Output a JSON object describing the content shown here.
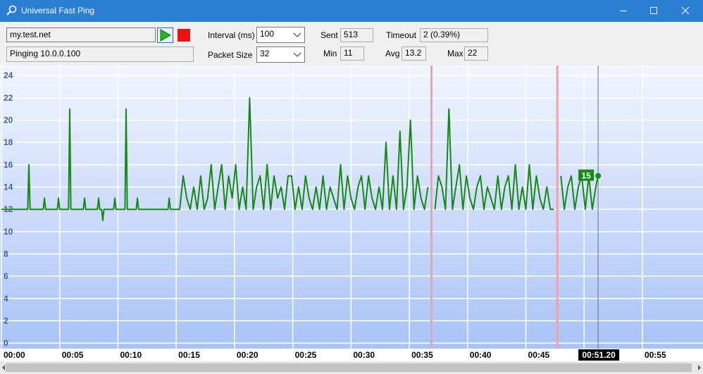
{
  "window": {
    "title": "Universal Fast Ping"
  },
  "controls": {
    "host": "my.test.net",
    "status": "Pinging 10.0.0.100",
    "interval_label": "Interval (ms)",
    "interval_value": "100",
    "packet_label": "Packet Size",
    "packet_value": "32",
    "sent_label": "Sent",
    "sent_value": "513",
    "timeout_label": "Timeout",
    "timeout_value": "2 (0.39%)",
    "min_label": "Min",
    "min_value": "11",
    "avg_label": "Avg",
    "avg_value": "13.2",
    "max_label": "Max",
    "max_value": "22"
  },
  "chart_data": {
    "type": "line",
    "xlim": [
      0,
      60.2
    ],
    "ylim": [
      -0.5,
      24.9
    ],
    "yticks": [
      0,
      2,
      4,
      6,
      8,
      10,
      12,
      14,
      16,
      18,
      20,
      22,
      24
    ],
    "xticks": [
      {
        "value": 0,
        "label": "00:00"
      },
      {
        "value": 5,
        "label": "00:05"
      },
      {
        "value": 10,
        "label": "00:10"
      },
      {
        "value": 15,
        "label": "00:15"
      },
      {
        "value": 20,
        "label": "00:20"
      },
      {
        "value": 25,
        "label": "00:25"
      },
      {
        "value": 30,
        "label": "00:30"
      },
      {
        "value": 35,
        "label": "00:35"
      },
      {
        "value": 40,
        "label": "00:40"
      },
      {
        "value": 45,
        "label": "00:45"
      },
      {
        "value": 50,
        "label": null
      },
      {
        "value": 55,
        "label": "00:55"
      }
    ],
    "grid": true,
    "cursor": {
      "value": 51.2,
      "label": "00:51.20"
    },
    "timeouts": [
      36.9,
      47.7
    ],
    "series": [
      {
        "color": "#158a15",
        "x": [
          0,
          2.26,
          2.36,
          2.46,
          3.59,
          3.69,
          3.79,
          4.8,
          4.9,
          5.0,
          5.76,
          5.86,
          5.96,
          7.03,
          7.13,
          7.23,
          8.24,
          8.34,
          8.44,
          8.6,
          8.7,
          8.8,
          9.63,
          9.73,
          9.83,
          10.6,
          10.7,
          10.8,
          11.57,
          11.67,
          11.77,
          14.3,
          14.4,
          14.5,
          15.0,
          15.3,
          15.6,
          15.9,
          16.2,
          16.5,
          16.8,
          17.1,
          17.4,
          17.7,
          18.0,
          18.3,
          18.6,
          18.9,
          19.2,
          19.5,
          19.8,
          20.1,
          20.4,
          20.7,
          21.0,
          21.3,
          21.6,
          21.9,
          22.2,
          22.5,
          22.8,
          23.1,
          23.4,
          23.7,
          24.0,
          24.3,
          24.6,
          24.9,
          25.2,
          25.5,
          25.8,
          26.1,
          26.4,
          26.7,
          27.0,
          27.3,
          27.6,
          27.9,
          28.2,
          28.5,
          28.8,
          29.1,
          29.4,
          29.7,
          30.0,
          30.3,
          30.6,
          30.9,
          31.2,
          31.5,
          31.8,
          32.1,
          32.4,
          32.7,
          33.0,
          33.3,
          33.6,
          33.9,
          34.2,
          34.5,
          34.8,
          35.1,
          35.4,
          35.7,
          36.0,
          36.3,
          36.6,
          36.9,
          37.2,
          37.5,
          37.8,
          38.1,
          38.4,
          38.7,
          39.0,
          39.3,
          39.6,
          39.9,
          40.2,
          40.5,
          40.8,
          41.1,
          41.4,
          41.7,
          42.0,
          42.3,
          42.6,
          42.9,
          43.2,
          43.5,
          43.8,
          44.1,
          44.4,
          44.7,
          45.0,
          45.3,
          45.6,
          45.9,
          46.2,
          46.5,
          46.8,
          47.1,
          47.4,
          47.7,
          48.0,
          48.3,
          48.6,
          48.9,
          49.2,
          49.5,
          49.8,
          50.1,
          50.4,
          50.7,
          51.0,
          51.2
        ],
        "values": [
          12,
          12,
          16,
          12,
          12,
          13,
          12,
          12,
          13,
          12,
          12,
          21,
          12,
          12,
          13,
          12,
          12,
          13,
          12,
          12,
          11,
          12,
          12,
          13,
          12,
          12,
          21,
          12,
          12,
          13,
          12,
          12,
          13,
          12,
          12,
          12,
          15,
          13,
          12,
          14,
          12,
          15,
          12,
          13,
          16,
          12,
          14,
          16,
          12,
          15,
          13,
          16,
          12,
          14,
          12,
          22,
          12,
          14,
          15,
          12,
          16,
          12,
          15,
          13,
          14,
          12,
          15,
          15,
          12,
          14,
          12,
          15,
          13,
          12,
          14,
          12,
          15,
          12,
          14,
          13,
          12,
          16,
          12,
          15,
          13,
          12,
          14,
          15,
          12,
          15,
          13,
          12,
          14,
          12,
          18,
          12,
          15,
          12,
          19,
          12,
          14,
          20,
          12,
          15,
          13,
          12,
          14,
          null,
          12,
          15,
          14,
          12,
          21,
          12,
          14,
          16,
          12,
          15,
          13,
          12,
          14,
          15,
          12,
          14,
          13,
          12,
          15,
          12,
          14,
          15,
          12,
          16,
          12,
          14,
          12,
          16,
          12,
          15,
          13,
          12,
          14,
          12,
          12,
          null,
          15,
          12,
          14,
          15,
          12,
          14,
          15,
          12,
          15,
          12,
          14,
          15
        ]
      }
    ]
  }
}
